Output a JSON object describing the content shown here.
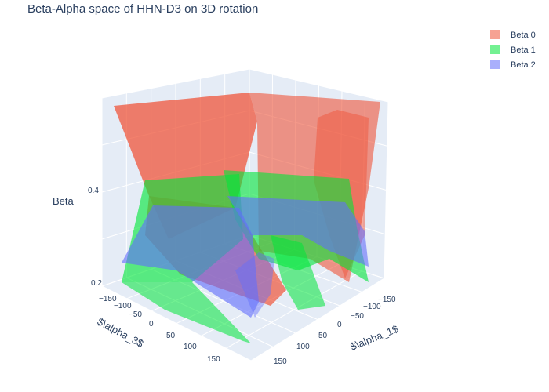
{
  "chart_data": {
    "type": "surface3d",
    "title": "Beta-Alpha space of HHN-D3 on 3D rotation",
    "axes": {
      "x": {
        "label": "$\\alpha_1$",
        "ticks": [
          "150",
          "100",
          "50",
          "0",
          "−50",
          "−100",
          "−150"
        ],
        "range": [
          -180,
          180
        ]
      },
      "y": {
        "label": "$\\alpha_3$",
        "ticks": [
          "−150",
          "−100",
          "−50",
          "0",
          "50",
          "100",
          "150"
        ],
        "range": [
          -180,
          180
        ]
      },
      "z": {
        "label": "Beta",
        "ticks": [
          "0.4",
          "0.2"
        ],
        "range": [
          0.2,
          0.6
        ]
      }
    },
    "legend": {
      "placement": "top-right",
      "entries": [
        {
          "name": "Beta 0",
          "color": "#ef553b"
        },
        {
          "name": "Beta 1",
          "color": "#00e639"
        },
        {
          "name": "Beta 2",
          "color": "#636efa"
        }
      ]
    },
    "series": [
      {
        "name": "Beta 0",
        "color": "#ef553b",
        "z_min": 0.2,
        "z_max": 0.6
      },
      {
        "name": "Beta 1",
        "color": "#00e639",
        "z_min": 0.2,
        "z_max": 0.42
      },
      {
        "name": "Beta 2",
        "color": "#636efa",
        "z_min": 0.2,
        "z_max": 0.34
      }
    ]
  }
}
